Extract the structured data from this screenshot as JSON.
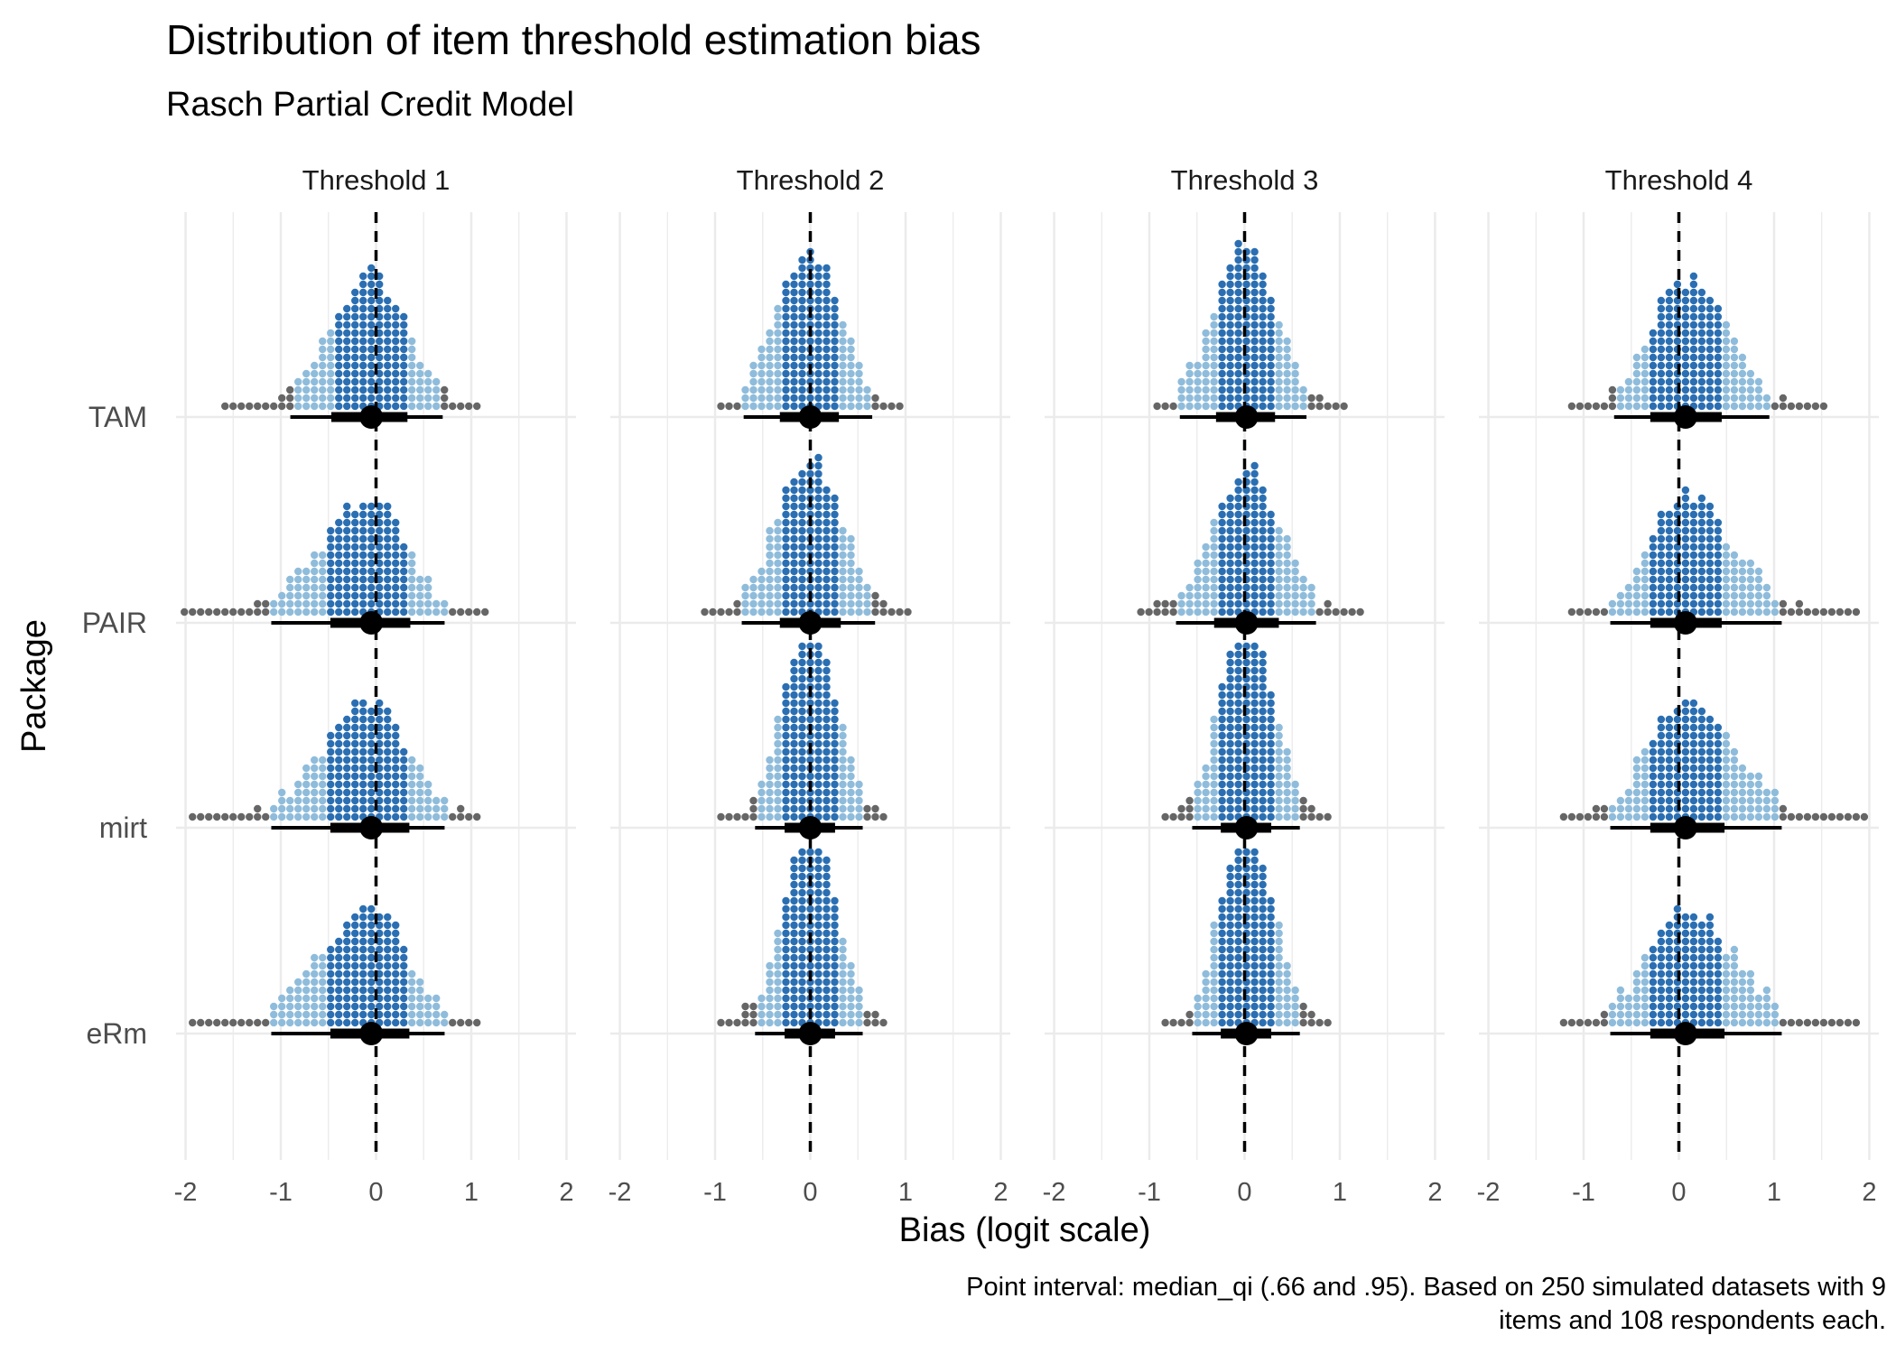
{
  "chart_data": {
    "type": "dotplot",
    "title": "Distribution of item threshold estimation bias",
    "subtitle": "Rasch Partial Credit Model",
    "xlabel": "Bias (logit scale)",
    "ylabel": "Package",
    "caption_lines": [
      "Point interval: median_qi (.66 and .95). Based on 250 simulated datasets with 9",
      "items and 108 respondents each."
    ],
    "xlim": [
      -2.1,
      2.1
    ],
    "x_ticks": [
      -2,
      -1,
      0,
      1,
      2
    ],
    "x_tick_labels": [
      "-2",
      "-1",
      "0",
      "1",
      "2"
    ],
    "reference_line_x": 0,
    "categories": [
      "TAM",
      "PAIR",
      "mirt",
      "eRm"
    ],
    "interval_levels": [
      0.66,
      0.95
    ],
    "colors": {
      "inner_66": "#2b6fb2",
      "outer_95": "#8fbcdb",
      "outlier": "#666666",
      "interval": "#000000",
      "grid": "#ebebeb"
    },
    "panels": [
      {
        "facet": "Threshold 1",
        "packages": [
          {
            "name": "TAM",
            "median": -0.05,
            "q66": [
              -0.47,
              0.33
            ],
            "q95": [
              -0.9,
              0.7
            ],
            "min": -1.6,
            "max": 1.05
          },
          {
            "name": "PAIR",
            "median": -0.05,
            "q66": [
              -0.48,
              0.36
            ],
            "q95": [
              -1.1,
              0.72
            ],
            "min": -2.05,
            "max": 1.15
          },
          {
            "name": "mirt",
            "median": -0.05,
            "q66": [
              -0.48,
              0.35
            ],
            "q95": [
              -1.1,
              0.72
            ],
            "min": -1.9,
            "max": 1.05
          },
          {
            "name": "eRm",
            "median": -0.05,
            "q66": [
              -0.48,
              0.35
            ],
            "q95": [
              -1.1,
              0.72
            ],
            "min": -1.9,
            "max": 1.05
          }
        ]
      },
      {
        "facet": "Threshold 2",
        "packages": [
          {
            "name": "TAM",
            "median": 0.0,
            "q66": [
              -0.32,
              0.3
            ],
            "q95": [
              -0.7,
              0.65
            ],
            "min": -0.9,
            "max": 0.95
          },
          {
            "name": "PAIR",
            "median": 0.0,
            "q66": [
              -0.32,
              0.32
            ],
            "q95": [
              -0.72,
              0.68
            ],
            "min": -1.1,
            "max": 1.05
          },
          {
            "name": "mirt",
            "median": 0.0,
            "q66": [
              -0.27,
              0.26
            ],
            "q95": [
              -0.58,
              0.55
            ],
            "min": -0.95,
            "max": 0.78
          },
          {
            "name": "eRm",
            "median": 0.0,
            "q66": [
              -0.27,
              0.26
            ],
            "q95": [
              -0.58,
              0.55
            ],
            "min": -0.95,
            "max": 0.78
          }
        ]
      },
      {
        "facet": "Threshold 3",
        "packages": [
          {
            "name": "TAM",
            "median": 0.02,
            "q66": [
              -0.3,
              0.32
            ],
            "q95": [
              -0.68,
              0.65
            ],
            "min": -0.88,
            "max": 1.05
          },
          {
            "name": "PAIR",
            "median": 0.02,
            "q66": [
              -0.32,
              0.36
            ],
            "q95": [
              -0.72,
              0.75
            ],
            "min": -1.12,
            "max": 1.2
          },
          {
            "name": "mirt",
            "median": 0.02,
            "q66": [
              -0.25,
              0.28
            ],
            "q95": [
              -0.55,
              0.58
            ],
            "min": -0.85,
            "max": 0.9
          },
          {
            "name": "eRm",
            "median": 0.02,
            "q66": [
              -0.25,
              0.28
            ],
            "q95": [
              -0.55,
              0.58
            ],
            "min": -0.85,
            "max": 0.9
          }
        ]
      },
      {
        "facet": "Threshold 4",
        "packages": [
          {
            "name": "TAM",
            "median": 0.07,
            "q66": [
              -0.3,
              0.45
            ],
            "q95": [
              -0.68,
              0.95
            ],
            "min": -1.1,
            "max": 1.55
          },
          {
            "name": "PAIR",
            "median": 0.07,
            "q66": [
              -0.3,
              0.45
            ],
            "q95": [
              -0.72,
              1.08
            ],
            "min": -1.15,
            "max": 1.85
          },
          {
            "name": "mirt",
            "median": 0.07,
            "q66": [
              -0.3,
              0.48
            ],
            "q95": [
              -0.72,
              1.08
            ],
            "min": -1.2,
            "max": 1.95
          },
          {
            "name": "eRm",
            "median": 0.07,
            "q66": [
              -0.3,
              0.48
            ],
            "q95": [
              -0.72,
              1.08
            ],
            "min": -1.2,
            "max": 1.85
          }
        ]
      }
    ]
  }
}
